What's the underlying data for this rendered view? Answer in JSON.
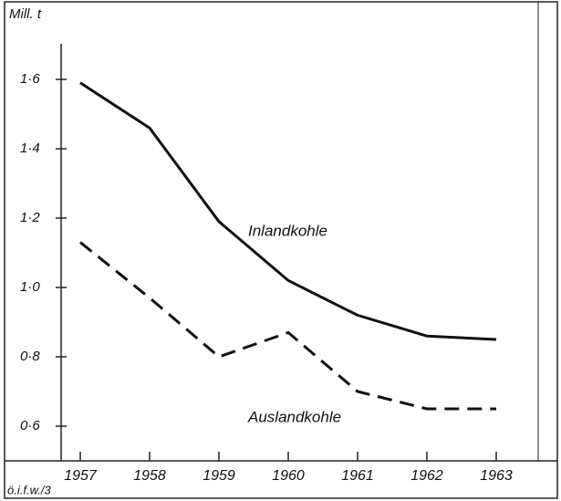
{
  "chart_data": {
    "type": "line",
    "y_label": "Mill. t",
    "source": "ö.i.f.w./3",
    "categories": [
      "1957",
      "1958",
      "1959",
      "1960",
      "1961",
      "1962",
      "1963"
    ],
    "series": [
      {
        "name": "Inlandkohle",
        "color": "#111111",
        "dash": false,
        "values": [
          1.59,
          1.46,
          1.19,
          1.02,
          0.92,
          0.86,
          0.85
        ]
      },
      {
        "name": "Auslandkohle",
        "color": "#111111",
        "dash": true,
        "values": [
          1.13,
          0.97,
          0.8,
          0.87,
          0.7,
          0.65,
          0.65
        ]
      }
    ],
    "ylim": [
      0.5,
      1.7
    ],
    "yticks": [
      {
        "value": 0.6,
        "label": "0·6"
      },
      {
        "value": 0.8,
        "label": "0·8"
      },
      {
        "value": 1.0,
        "label": "1·0"
      },
      {
        "value": 1.2,
        "label": "1·2"
      },
      {
        "value": 1.4,
        "label": "1·4"
      },
      {
        "value": 1.6,
        "label": "1·6"
      }
    ],
    "grid": false
  }
}
